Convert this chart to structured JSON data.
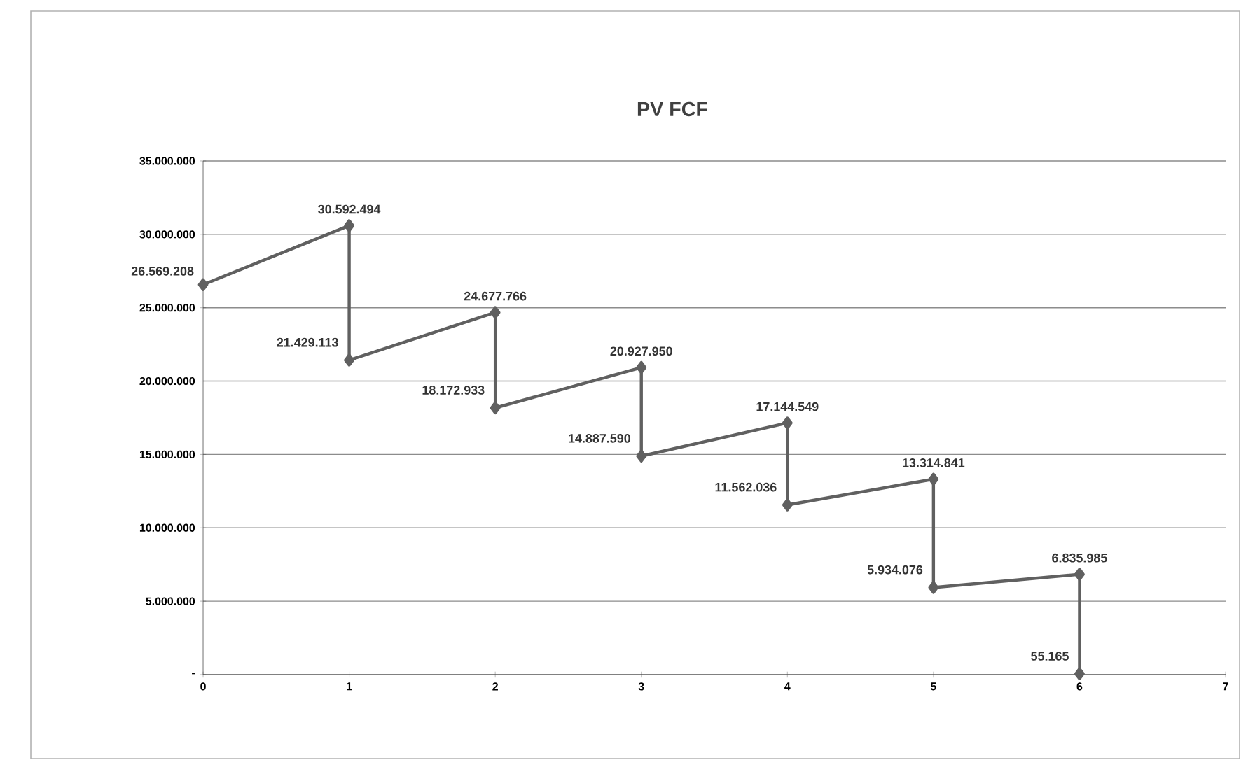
{
  "chart_data": {
    "type": "line",
    "title": "PV FCF",
    "x": [
      0,
      1,
      1,
      2,
      2,
      3,
      3,
      4,
      4,
      5,
      5,
      6,
      6
    ],
    "series": [
      {
        "color": "#606060",
        "values": [
          26569208,
          30592494,
          21429113,
          24677766,
          18172933,
          20927950,
          14887590,
          17144549,
          11562036,
          13314841,
          5934076,
          6835985,
          55165
        ],
        "value_labels": [
          "26.569.208",
          "30.592.494",
          "21.429.113",
          "24.677.766",
          "18.172.933",
          "20.927.950",
          "14.887.590",
          "17.144.549",
          "11.562.036",
          "13.314.841",
          "5.934.076",
          "6.835.985",
          "55.165"
        ]
      }
    ],
    "xlim": [
      0,
      7
    ],
    "xticks": [
      0,
      1,
      2,
      3,
      4,
      5,
      6,
      7
    ],
    "ylim": [
      0,
      35000000
    ],
    "yticks": [
      {
        "value": 0,
        "label": "-"
      },
      {
        "value": 5000000,
        "label": "5.000.000"
      },
      {
        "value": 10000000,
        "label": "10.000.000"
      },
      {
        "value": 15000000,
        "label": "15.000.000"
      },
      {
        "value": 20000000,
        "label": "20.000.000"
      },
      {
        "value": 25000000,
        "label": "25.000.000"
      },
      {
        "value": 30000000,
        "label": "30.000.000"
      },
      {
        "value": 35000000,
        "label": "35.000.000"
      }
    ],
    "grid": "y",
    "marker": "diamond",
    "line_style": "solid"
  }
}
